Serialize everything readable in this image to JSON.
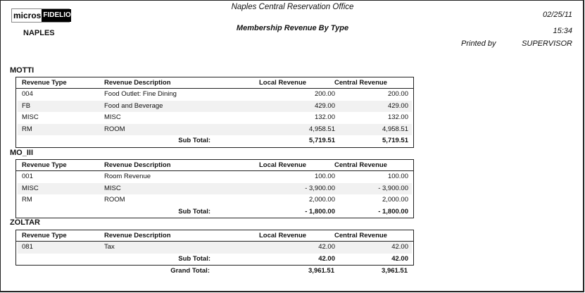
{
  "header": {
    "logo": {
      "left": "micros",
      "right": "FIDELIO"
    },
    "property": "NAPLES",
    "office": "Naples Central Reservation Office",
    "report_title": "Membership Revenue By Type",
    "date": "02/25/11",
    "time": "15:34",
    "printed_by_label": "Printed by",
    "printed_by": "SUPERVISOR"
  },
  "columns": [
    "Revenue Type",
    "Revenue Description",
    "Local Revenue",
    "Central Revenue"
  ],
  "subtotal_label": "Sub Total:",
  "groups": [
    {
      "name": "MOTTI",
      "rows": [
        [
          "004",
          "Food Outlet: Fine Dining",
          "200.00",
          "200.00"
        ],
        [
          "FB",
          "Food and Beverage",
          "429.00",
          "429.00"
        ],
        [
          "MISC",
          "MISC",
          "132.00",
          "132.00"
        ],
        [
          "RM",
          "ROOM",
          "4,958.51",
          "4,958.51"
        ]
      ],
      "subtotal": [
        "5,719.51",
        "5,719.51"
      ]
    },
    {
      "name": "MO_III",
      "rows": [
        [
          "001",
          "Room Revenue",
          "100.00",
          "100.00"
        ],
        [
          "MISC",
          "MISC",
          "- 3,900.00",
          "- 3,900.00"
        ],
        [
          "RM",
          "ROOM",
          "2,000.00",
          "2,000.00"
        ]
      ],
      "subtotal": [
        "- 1,800.00",
        "- 1,800.00"
      ]
    },
    {
      "name": "ZOLTAR",
      "rows": [
        [
          "081",
          "Tax",
          "42.00",
          "42.00"
        ]
      ],
      "subtotal": [
        "42.00",
        "42.00"
      ]
    }
  ],
  "grand_total": {
    "label": "Grand Total:",
    "local": "3,961.51",
    "central": "3,961.51"
  }
}
